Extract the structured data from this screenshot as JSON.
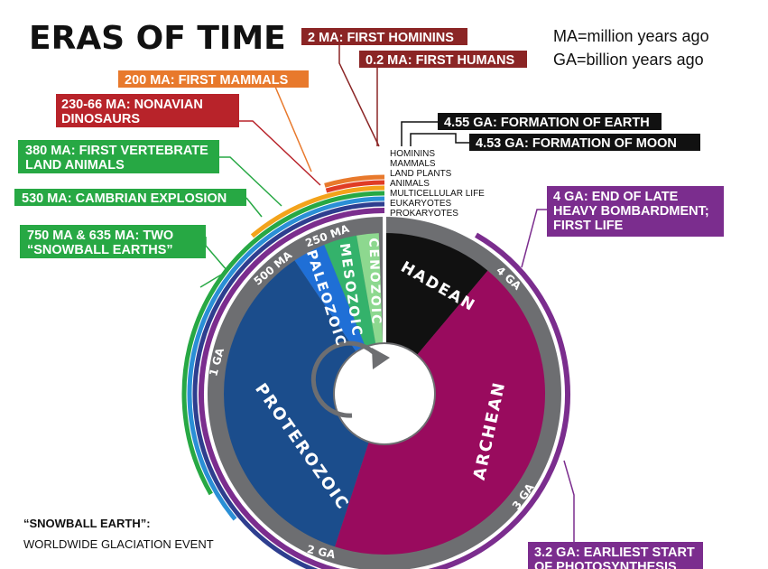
{
  "title": "ERAS OF TIME",
  "abbreviations": [
    "MA=million years ago",
    "GA=billion years ago"
  ],
  "callouts": {
    "hominins": "2 MA: FIRST HOMININS",
    "humans": "0.2 MA: FIRST HUMANS",
    "mammals": "200 MA: FIRST MAMMALS",
    "dinosaurs_1": "230-66 MA: NONAVIAN",
    "dinosaurs_2": "DINOSAURS",
    "land_animals_1": "380 MA: FIRST VERTEBRATE",
    "land_animals_2": "LAND ANIMALS",
    "cambrian": "530 MA: CAMBRIAN EXPLOSION",
    "snowball_1": "750 MA & 635 MA: TWO",
    "snowball_2": "“SNOWBALL EARTHS”",
    "earth": "4.55 GA: FORMATION OF EARTH",
    "moon": "4.53 GA: FORMATION OF MOON",
    "bombardment_1": "4 GA: END OF LATE",
    "bombardment_2": "HEAVY BOMBARDMENT;",
    "bombardment_3": "FIRST LIFE",
    "photosynthesis_1": "3.2 GA: EARLIEST START",
    "photosynthesis_2": "OF PHOTOSYNTHESIS"
  },
  "ring_legend": [
    "HOMININS",
    "MAMMALS",
    "LAND PLANTS",
    "ANIMALS",
    "MULTICELLULAR LIFE",
    "EUKARYOTES",
    "PROKARYOTES"
  ],
  "eras": {
    "hadean": "HADEAN",
    "archean": "ARCHEAN",
    "proterozoic": "PROTEROZOIC",
    "paleozoic": "PALEOZOIC",
    "mesozoic": "MESOZOIC",
    "cenozoic": "CENOZOIC"
  },
  "ticks": {
    "ga4": "4 GA",
    "ga3": "3 GA",
    "ga2": "2 GA",
    "ga1": "1 GA",
    "ma500": "500 MA",
    "ma250": "250 MA"
  },
  "note": [
    "“SNOWBALL EARTH”:",
    "WORLDWIDE GLACIATION EVENT"
  ],
  "colors": {
    "hadean": "#111111",
    "archean": "#990b5e",
    "proterozoic": "#1b4d8c",
    "paleozoic": "#1f6fd6",
    "mesozoic": "#34b26b",
    "cenozoic": "#8dd88f",
    "tick_ring": "#6d6e71",
    "prokaryotes": "#7b2d8e",
    "eukaryotes": "#2e3e8f",
    "multicellular": "#2a8fd6",
    "animals": "#27a844",
    "land_plants": "#f3a31b",
    "mammals": "#e03c25",
    "hominins": "#e8792c",
    "callout_dark_red": "#8b2525",
    "callout_red": "#b8232a",
    "callout_orange": "#e8792c",
    "callout_green": "#27a844",
    "callout_purple": "#7b2d8e",
    "callout_black": "#111111"
  }
}
